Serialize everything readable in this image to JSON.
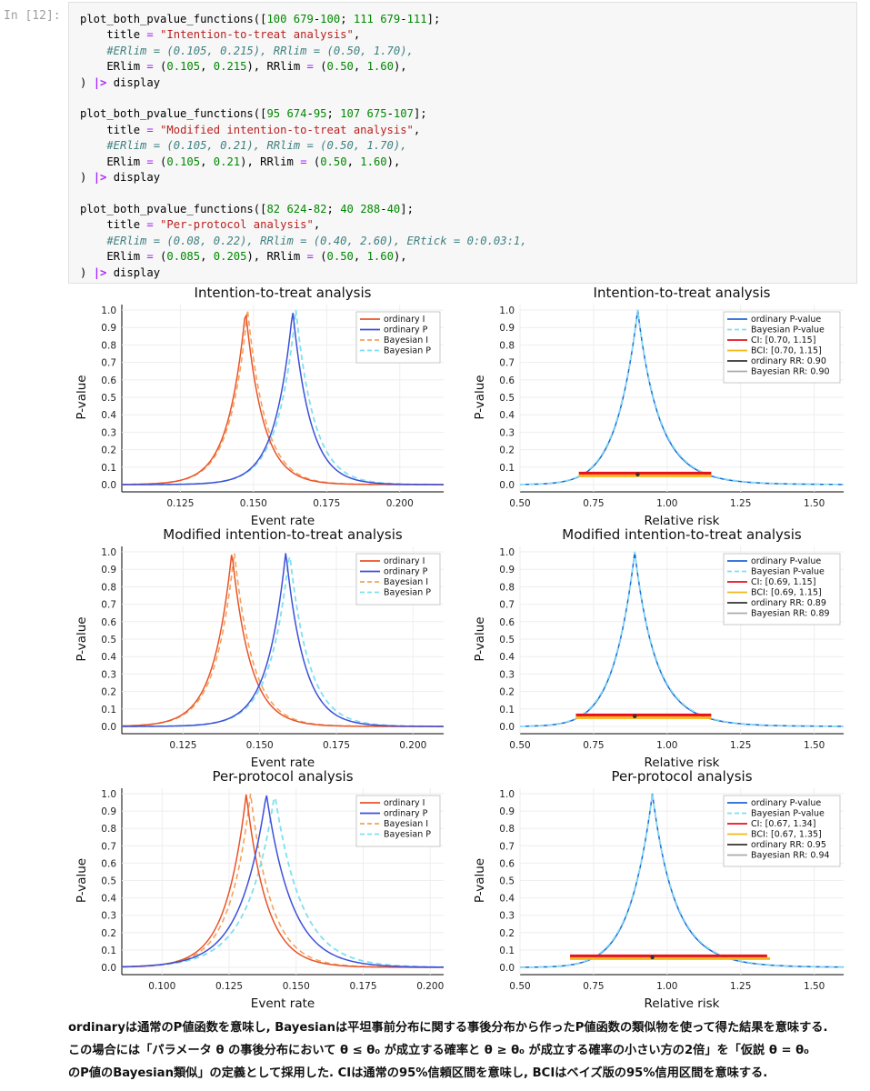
{
  "prompt": "In [12]:",
  "code": [
    {
      "line": [
        [
          "plot_both_pvalue_functions([",
          ""
        ],
        [
          "100 679",
          "num"
        ],
        [
          "-",
          ""
        ],
        [
          "100",
          "num"
        ],
        [
          "; ",
          ""
        ],
        [
          "111 679",
          "num"
        ],
        [
          "-",
          ""
        ],
        [
          "111",
          "num"
        ],
        [
          "];",
          ""
        ]
      ]
    },
    {
      "line": [
        [
          "    title ",
          ""
        ],
        [
          "=",
          "eq"
        ],
        [
          " ",
          ""
        ],
        [
          "\"Intention-to-treat analysis\"",
          "str"
        ],
        [
          ",",
          ""
        ]
      ]
    },
    {
      "line": [
        [
          "    #ERlim = (0.105, 0.215), RRlim = (0.50, 1.70),",
          "com"
        ]
      ]
    },
    {
      "line": [
        [
          "    ERlim ",
          ""
        ],
        [
          "=",
          "eq"
        ],
        [
          " (",
          ""
        ],
        [
          "0.105",
          "num"
        ],
        [
          ", ",
          ""
        ],
        [
          "0.215",
          "num"
        ],
        [
          "), RRlim ",
          ""
        ],
        [
          "=",
          "eq"
        ],
        [
          " (",
          ""
        ],
        [
          "0.50",
          "num"
        ],
        [
          ", ",
          ""
        ],
        [
          "1.60",
          "num"
        ],
        [
          "),",
          ""
        ]
      ]
    },
    {
      "line": [
        [
          ") ",
          ""
        ],
        [
          "|>",
          "op"
        ],
        [
          " display",
          ""
        ]
      ]
    },
    {
      "line": [
        [
          "",
          ""
        ]
      ]
    },
    {
      "line": [
        [
          "plot_both_pvalue_functions([",
          ""
        ],
        [
          "95 674",
          "num"
        ],
        [
          "-",
          ""
        ],
        [
          "95",
          "num"
        ],
        [
          "; ",
          ""
        ],
        [
          "107 675",
          "num"
        ],
        [
          "-",
          ""
        ],
        [
          "107",
          "num"
        ],
        [
          "];",
          ""
        ]
      ]
    },
    {
      "line": [
        [
          "    title ",
          ""
        ],
        [
          "=",
          "eq"
        ],
        [
          " ",
          ""
        ],
        [
          "\"Modified intention-to-treat analysis\"",
          "str"
        ],
        [
          ",",
          ""
        ]
      ]
    },
    {
      "line": [
        [
          "    #ERlim = (0.105, 0.21), RRlim = (0.50, 1.70),",
          "com"
        ]
      ]
    },
    {
      "line": [
        [
          "    ERlim ",
          ""
        ],
        [
          "=",
          "eq"
        ],
        [
          " (",
          ""
        ],
        [
          "0.105",
          "num"
        ],
        [
          ", ",
          ""
        ],
        [
          "0.21",
          "num"
        ],
        [
          "), RRlim ",
          ""
        ],
        [
          "=",
          "eq"
        ],
        [
          " (",
          ""
        ],
        [
          "0.50",
          "num"
        ],
        [
          ", ",
          ""
        ],
        [
          "1.60",
          "num"
        ],
        [
          "),",
          ""
        ]
      ]
    },
    {
      "line": [
        [
          ") ",
          ""
        ],
        [
          "|>",
          "op"
        ],
        [
          " display",
          ""
        ]
      ]
    },
    {
      "line": [
        [
          "",
          ""
        ]
      ]
    },
    {
      "line": [
        [
          "plot_both_pvalue_functions([",
          ""
        ],
        [
          "82 624",
          "num"
        ],
        [
          "-",
          ""
        ],
        [
          "82",
          "num"
        ],
        [
          "; ",
          ""
        ],
        [
          "40 288",
          "num"
        ],
        [
          "-",
          ""
        ],
        [
          "40",
          "num"
        ],
        [
          "];",
          ""
        ]
      ]
    },
    {
      "line": [
        [
          "    title ",
          ""
        ],
        [
          "=",
          "eq"
        ],
        [
          " ",
          ""
        ],
        [
          "\"Per-protocol analysis\"",
          "str"
        ],
        [
          ",",
          ""
        ]
      ]
    },
    {
      "line": [
        [
          "    #ERlim = (0.08, 0.22), RRlim = (0.40, 2.60), ERtick = 0:0.03:1,",
          "com"
        ]
      ]
    },
    {
      "line": [
        [
          "    ERlim ",
          ""
        ],
        [
          "=",
          "eq"
        ],
        [
          " (",
          ""
        ],
        [
          "0.085",
          "num"
        ],
        [
          ", ",
          ""
        ],
        [
          "0.205",
          "num"
        ],
        [
          "), RRlim ",
          ""
        ],
        [
          "=",
          "eq"
        ],
        [
          " (",
          ""
        ],
        [
          "0.50",
          "num"
        ],
        [
          ", ",
          ""
        ],
        [
          "1.60",
          "num"
        ],
        [
          "),",
          ""
        ]
      ]
    },
    {
      "line": [
        [
          ") ",
          ""
        ],
        [
          "|>",
          "op"
        ],
        [
          " display",
          ""
        ]
      ]
    }
  ],
  "colors": {
    "ordinary_I": "#e8542a",
    "ordinary_P": "#3c4fd8",
    "bayes_I": "#f5a25a",
    "bayes_P": "#7fdff0",
    "ci": "#e8101a",
    "bci": "#f4b81c",
    "ordRR": "#333333",
    "bayesRR": "#aaaaaa",
    "pvalue": "#1f66d6",
    "bayes_pvalue": "#7fdff0"
  },
  "chart_data": [
    {
      "type": "line",
      "title": "Intention-to-treat analysis",
      "xlabel": "Event rate",
      "ylabel": "P-value",
      "xlim": [
        0.105,
        0.215
      ],
      "ylim": [
        0,
        1.0
      ],
      "xticks": [
        "0.125",
        "0.150",
        "0.175",
        "0.200"
      ],
      "yticks": [
        "0.0",
        "0.1",
        "0.2",
        "0.3",
        "0.4",
        "0.5",
        "0.6",
        "0.7",
        "0.8",
        "0.9",
        "1.0"
      ],
      "legend": [
        "ordinary I",
        "ordinary P",
        "Bayesian I",
        "Bayesian P"
      ],
      "peaks": {
        "ordinary_I": 0.1473,
        "ordinary_P": 0.1634,
        "bayes_I": 0.148,
        "bayes_P": 0.1645
      }
    },
    {
      "type": "line",
      "title": "Intention-to-treat analysis",
      "xlabel": "Relative risk",
      "ylabel": "P-value",
      "xlim": [
        0.5,
        1.6
      ],
      "ylim": [
        0,
        1.0
      ],
      "xticks": [
        "0.50",
        "0.75",
        "1.00",
        "1.25",
        "1.50"
      ],
      "yticks": [
        "0.0",
        "0.1",
        "0.2",
        "0.3",
        "0.4",
        "0.5",
        "0.6",
        "0.7",
        "0.8",
        "0.9",
        "1.0"
      ],
      "legend": [
        "ordinary P-value",
        "Bayesian P-value",
        "CI:   [0.70, 1.15]",
        "BCI: [0.70, 1.15]",
        "ordinary RR: 0.90",
        "Bayesian RR: 0.90"
      ],
      "rr": 0.9,
      "ci": [
        0.7,
        1.15
      ],
      "bci": [
        0.7,
        1.15
      ]
    },
    {
      "type": "line",
      "title": "Modified intention-to-treat analysis",
      "xlabel": "Event rate",
      "ylabel": "P-value",
      "xlim": [
        0.105,
        0.21
      ],
      "ylim": [
        0,
        1.0
      ],
      "xticks": [
        "0.125",
        "0.150",
        "0.175",
        "0.200"
      ],
      "yticks": [
        "0.0",
        "0.1",
        "0.2",
        "0.3",
        "0.4",
        "0.5",
        "0.6",
        "0.7",
        "0.8",
        "0.9",
        "1.0"
      ],
      "legend": [
        "ordinary I",
        "ordinary P",
        "Bayesian I",
        "Bayesian P"
      ],
      "peaks": {
        "ordinary_I": 0.1409,
        "ordinary_P": 0.1585,
        "bayes_I": 0.1417,
        "bayes_P": 0.1597
      }
    },
    {
      "type": "line",
      "title": "Modified intention-to-treat analysis",
      "xlabel": "Relative risk",
      "ylabel": "P-value",
      "xlim": [
        0.5,
        1.6
      ],
      "ylim": [
        0,
        1.0
      ],
      "xticks": [
        "0.50",
        "0.75",
        "1.00",
        "1.25",
        "1.50"
      ],
      "yticks": [
        "0.0",
        "0.1",
        "0.2",
        "0.3",
        "0.4",
        "0.5",
        "0.6",
        "0.7",
        "0.8",
        "0.9",
        "1.0"
      ],
      "legend": [
        "ordinary P-value",
        "Bayesian P-value",
        "CI:   [0.69, 1.15]",
        "BCI: [0.69, 1.15]",
        "ordinary RR: 0.89",
        "Bayesian RR: 0.89"
      ],
      "rr": 0.89,
      "ci": [
        0.69,
        1.15
      ],
      "bci": [
        0.69,
        1.15
      ]
    },
    {
      "type": "line",
      "title": "Per-protocol analysis",
      "xlabel": "Event rate",
      "ylabel": "P-value",
      "xlim": [
        0.085,
        0.205
      ],
      "ylim": [
        0,
        1.0
      ],
      "xticks": [
        "0.100",
        "0.125",
        "0.150",
        "0.175",
        "0.200"
      ],
      "yticks": [
        "0.0",
        "0.1",
        "0.2",
        "0.3",
        "0.4",
        "0.5",
        "0.6",
        "0.7",
        "0.8",
        "0.9",
        "1.0"
      ],
      "legend": [
        "ordinary I",
        "ordinary P",
        "Bayesian I",
        "Bayesian P"
      ],
      "peaks": {
        "ordinary_I": 0.1314,
        "ordinary_P": 0.1389,
        "bayes_I": 0.133,
        "bayes_P": 0.142
      }
    },
    {
      "type": "line",
      "title": "Per-protocol analysis",
      "xlabel": "Relative risk",
      "ylabel": "P-value",
      "xlim": [
        0.5,
        1.6
      ],
      "ylim": [
        0,
        1.0
      ],
      "xticks": [
        "0.50",
        "0.75",
        "1.00",
        "1.25",
        "1.50"
      ],
      "yticks": [
        "0.0",
        "0.1",
        "0.2",
        "0.3",
        "0.4",
        "0.5",
        "0.6",
        "0.7",
        "0.8",
        "0.9",
        "1.0"
      ],
      "legend": [
        "ordinary P-value",
        "Bayesian P-value",
        "CI:   [0.67, 1.34]",
        "BCI: [0.67, 1.35]",
        "ordinary RR: 0.95",
        "Bayesian RR: 0.94"
      ],
      "rr": 0.95,
      "ci": [
        0.67,
        1.34
      ],
      "bci": [
        0.67,
        1.35
      ]
    }
  ],
  "footer": [
    "ordinaryは通常のP値函数を意味し, Bayesianは平坦事前分布に関する事後分布から作ったP値函数の類似物を使って得た結果を意味する.",
    "この場合には「パラメータ θ の事後分布において θ ≤ θ₀ が成立する確率と θ ≥ θ₀ が成立する確率の小さい方の2倍」を「仮説 θ = θ₀",
    "のP値のBayesian類似」の定義として採用した. CIは通常の95%信頼区間を意味し, BCIはベイズ版の95%信用区間を意味する."
  ]
}
